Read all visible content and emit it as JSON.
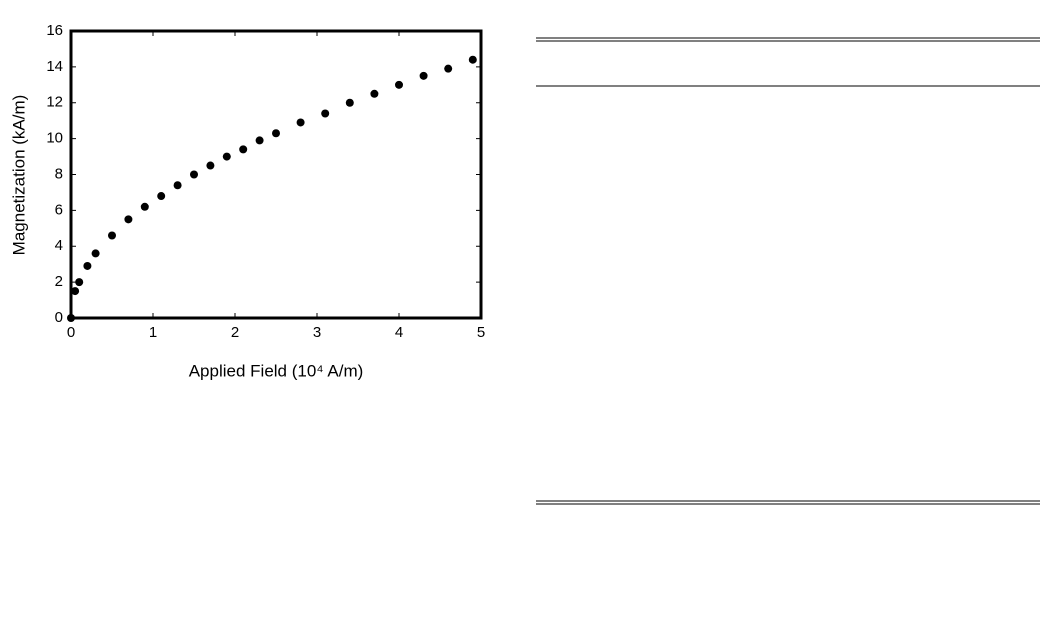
{
  "chart_data": {
    "type": "scatter",
    "x_label": "Applied Field (10⁴ A/m)",
    "y_label": "Magnetization (kA/m)",
    "x": [
      0,
      0.05,
      0.1,
      0.2,
      0.3,
      0.5,
      0.7,
      0.9,
      1.1,
      1.3,
      1.5,
      1.7,
      1.9,
      2.1,
      2.3,
      2.5,
      2.8,
      3.1,
      3.4,
      3.7,
      4.0,
      4.3,
      4.6,
      4.9
    ],
    "values": [
      0,
      1.5,
      2.0,
      2.9,
      3.6,
      4.6,
      5.5,
      6.2,
      6.8,
      7.4,
      8.0,
      8.5,
      9.0,
      9.4,
      9.9,
      10.3,
      10.9,
      11.4,
      12.0,
      12.5,
      13.0,
      13.5,
      13.9,
      14.4
    ],
    "color": "#000000",
    "xlim": [
      0,
      5
    ],
    "xticks": [
      0,
      1,
      2,
      3,
      4,
      5
    ],
    "ylim": [
      0,
      16
    ],
    "yticks": [
      0,
      2,
      4,
      6,
      8,
      10,
      12,
      14,
      16
    ]
  }
}
